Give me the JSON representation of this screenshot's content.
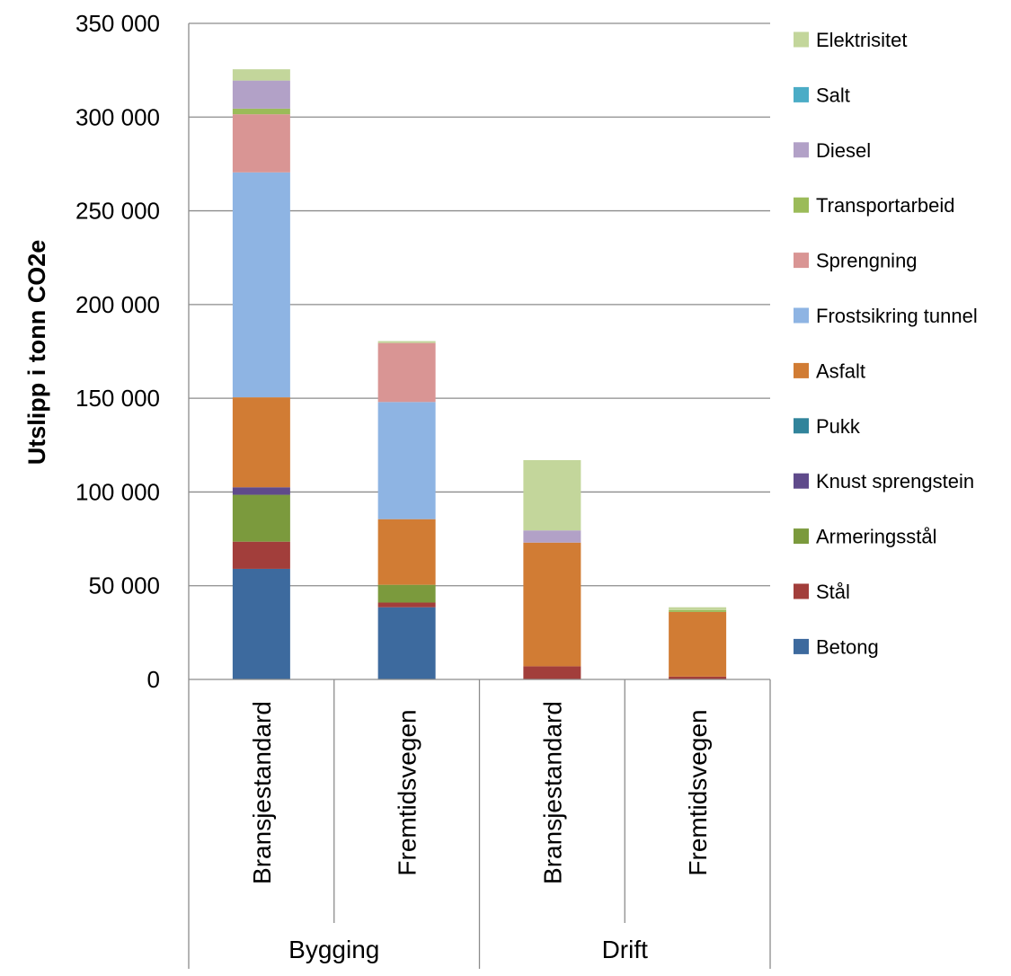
{
  "chart_data": {
    "type": "bar",
    "stacked": true,
    "title": "",
    "ylabel": "Utslipp i tonn CO2e",
    "ylim": [
      0,
      350000
    ],
    "ytick_values": [
      0,
      50000,
      100000,
      150000,
      200000,
      250000,
      300000,
      350000
    ],
    "ytick_labels": [
      "0",
      "50 000",
      "100 000",
      "150 000",
      "200 000",
      "250 000",
      "300 000",
      "350 000"
    ],
    "grid": true,
    "legend_position": "right",
    "groups": [
      {
        "label": "Bygging",
        "categories": [
          "Bransjestandard",
          "Fremtidsvegen"
        ]
      },
      {
        "label": "Drift",
        "categories": [
          "Bransjestandard",
          "Fremtidsvegen"
        ]
      }
    ],
    "categories": [
      "Bransjestandard",
      "Fremtidsvegen",
      "Bransjestandard",
      "Fremtidsvegen"
    ],
    "series": [
      {
        "name": "Betong",
        "color": "#3d6a9e",
        "values": [
          59000,
          38500,
          0,
          0
        ]
      },
      {
        "name": "Stål",
        "color": "#a23e3b",
        "values": [
          14500,
          2500,
          7000,
          1500
        ]
      },
      {
        "name": "Armeringsstål",
        "color": "#7b9a3d",
        "values": [
          25000,
          9500,
          0,
          0
        ]
      },
      {
        "name": "Knust sprengstein",
        "color": "#5f4a8b",
        "values": [
          4000,
          0,
          0,
          0
        ]
      },
      {
        "name": "Pukk",
        "color": "#31849b",
        "values": [
          0,
          0,
          0,
          0
        ]
      },
      {
        "name": "Asfalt",
        "color": "#d17c34",
        "values": [
          48000,
          35000,
          66000,
          34500
        ]
      },
      {
        "name": "Frostsikring tunnel",
        "color": "#8eb4e3",
        "values": [
          120000,
          62500,
          0,
          0
        ]
      },
      {
        "name": "Sprengning",
        "color": "#d99594",
        "values": [
          31000,
          31500,
          0,
          0
        ]
      },
      {
        "name": "Transportarbeid",
        "color": "#9bbb59",
        "values": [
          3000,
          0,
          0,
          1000
        ]
      },
      {
        "name": "Diesel",
        "color": "#b2a1c7",
        "values": [
          15000,
          0,
          6500,
          0
        ]
      },
      {
        "name": "Salt",
        "color": "#4bacc6",
        "values": [
          0,
          0,
          0,
          0
        ]
      },
      {
        "name": "Elektrisitet",
        "color": "#c3d69b",
        "values": [
          6000,
          1000,
          37500,
          1500
        ]
      }
    ]
  }
}
